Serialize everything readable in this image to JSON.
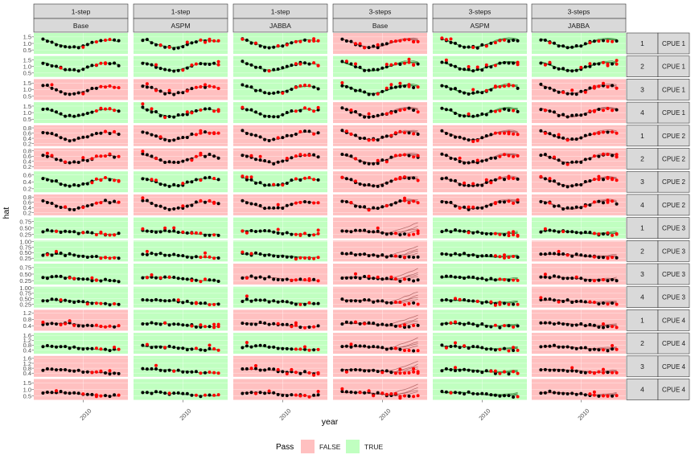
{
  "chart_data": {
    "type": "scatter",
    "xlabel": "year",
    "ylabel": "hat",
    "x_tick_labels": [
      "2010"
    ],
    "x_tick_values": [
      2010
    ],
    "xlim": [
      2000,
      2019
    ],
    "grid": true,
    "legend": {
      "title": "Pass",
      "placement": "bottom",
      "entries": [
        {
          "label": "FALSE",
          "color": "#ffc0c0"
        },
        {
          "label": "TRUE",
          "color": "#c0ffc0"
        }
      ]
    },
    "columns": [
      {
        "step": "1-step",
        "model": "Base"
      },
      {
        "step": "1-step",
        "model": "ASPM"
      },
      {
        "step": "1-step",
        "model": "JABBA"
      },
      {
        "step": "3-steps",
        "model": "Base"
      },
      {
        "step": "3-steps",
        "model": "ASPM"
      },
      {
        "step": "3-steps",
        "model": "JABBA"
      }
    ],
    "rows": [
      {
        "replicate": "1",
        "index": "CPUE 1",
        "ylim": [
          0.2,
          1.8
        ],
        "yticks": [
          "1.5",
          "1.0",
          "0.5"
        ],
        "ytick_values": [
          1.5,
          1.0,
          0.5
        ]
      },
      {
        "replicate": "2",
        "index": "CPUE 1",
        "ylim": [
          0.2,
          1.8
        ],
        "yticks": [
          "1.5",
          "1.0",
          "0.5"
        ],
        "ytick_values": [
          1.5,
          1.0,
          0.5
        ]
      },
      {
        "replicate": "3",
        "index": "CPUE 1",
        "ylim": [
          0.2,
          1.8
        ],
        "yticks": [
          "1.5",
          "1.0",
          "0.5"
        ],
        "ytick_values": [
          1.5,
          1.0,
          0.5
        ]
      },
      {
        "replicate": "4",
        "index": "CPUE 1",
        "ylim": [
          0.2,
          1.8
        ],
        "yticks": [
          "1.5",
          "1.0",
          "0.5"
        ],
        "ytick_values": [
          1.5,
          1.0,
          0.5
        ]
      },
      {
        "replicate": "1",
        "index": "CPUE 2",
        "ylim": [
          0.1,
          0.9
        ],
        "yticks": [
          "0.8",
          "0.6",
          "0.4",
          "0.2"
        ],
        "ytick_values": [
          0.8,
          0.6,
          0.4,
          0.2
        ]
      },
      {
        "replicate": "2",
        "index": "CPUE 2",
        "ylim": [
          0.1,
          0.9
        ],
        "yticks": [
          "0.8",
          "0.6",
          "0.4",
          "0.2"
        ],
        "ytick_values": [
          0.8,
          0.6,
          0.4,
          0.2
        ]
      },
      {
        "replicate": "3",
        "index": "CPUE 2",
        "ylim": [
          0.1,
          0.7
        ],
        "yticks": [
          "0.6",
          "0.4",
          "0.2"
        ],
        "ytick_values": [
          0.6,
          0.4,
          0.2
        ]
      },
      {
        "replicate": "4",
        "index": "CPUE 2",
        "ylim": [
          0.1,
          0.9
        ],
        "yticks": [
          "0.8",
          "0.6",
          "0.4",
          "0.2"
        ],
        "ytick_values": [
          0.8,
          0.6,
          0.4,
          0.2
        ]
      },
      {
        "replicate": "1",
        "index": "CPUE 3",
        "ylim": [
          0.1,
          0.9
        ],
        "yticks": [
          "0.75",
          "0.50",
          "0.25"
        ],
        "ytick_values": [
          0.75,
          0.5,
          0.25
        ]
      },
      {
        "replicate": "2",
        "index": "CPUE 3",
        "ylim": [
          0.1,
          1.05
        ],
        "yticks": [
          "1.00",
          "0.75",
          "0.50",
          "0.25"
        ],
        "ytick_values": [
          1.0,
          0.75,
          0.5,
          0.25
        ]
      },
      {
        "replicate": "3",
        "index": "CPUE 3",
        "ylim": [
          0.1,
          0.9
        ],
        "yticks": [
          "0.75",
          "0.50",
          "0.25"
        ],
        "ytick_values": [
          0.75,
          0.5,
          0.25
        ]
      },
      {
        "replicate": "4",
        "index": "CPUE 3",
        "ylim": [
          0.1,
          1.05
        ],
        "yticks": [
          "1.00",
          "0.75",
          "0.50",
          "0.25"
        ],
        "ytick_values": [
          1.0,
          0.75,
          0.5,
          0.25
        ]
      },
      {
        "replicate": "1",
        "index": "CPUE 4",
        "ylim": [
          0.1,
          1.4
        ],
        "yticks": [
          "1.2",
          "0.8",
          "0.4"
        ],
        "ytick_values": [
          1.2,
          0.8,
          0.4
        ]
      },
      {
        "replicate": "2",
        "index": "CPUE 4",
        "ylim": [
          0.1,
          1.8
        ],
        "yticks": [
          "1.6",
          "1.2",
          "0.8",
          "0.4"
        ],
        "ytick_values": [
          1.6,
          1.2,
          0.8,
          0.4
        ]
      },
      {
        "replicate": "3",
        "index": "CPUE 4",
        "ylim": [
          0.1,
          1.8
        ],
        "yticks": [
          "1.6",
          "1.2",
          "0.8",
          "0.4"
        ],
        "ytick_values": [
          1.6,
          1.2,
          0.8,
          0.4
        ]
      },
      {
        "replicate": "4",
        "index": "CPUE 4",
        "ylim": [
          0.2,
          1.8
        ],
        "yticks": [
          "1.5",
          "1.0",
          "0.5"
        ],
        "ytick_values": [
          1.5,
          1.0,
          0.5
        ]
      }
    ],
    "pass": [
      [
        true,
        true,
        true,
        false,
        true,
        true
      ],
      [
        true,
        true,
        true,
        true,
        true,
        true
      ],
      [
        false,
        false,
        true,
        true,
        true,
        false
      ],
      [
        true,
        true,
        true,
        false,
        true,
        false
      ],
      [
        false,
        false,
        false,
        false,
        false,
        false
      ],
      [
        false,
        false,
        false,
        false,
        false,
        false
      ],
      [
        true,
        true,
        true,
        false,
        false,
        false
      ],
      [
        false,
        false,
        false,
        false,
        false,
        false
      ],
      [
        true,
        true,
        true,
        false,
        true,
        true
      ],
      [
        true,
        true,
        true,
        false,
        true,
        false
      ],
      [
        true,
        true,
        false,
        false,
        true,
        false
      ],
      [
        true,
        true,
        true,
        false,
        true,
        false
      ],
      [
        false,
        true,
        false,
        false,
        true,
        false
      ],
      [
        true,
        true,
        true,
        false,
        true,
        false
      ],
      [
        false,
        true,
        false,
        false,
        true,
        false
      ],
      [
        false,
        true,
        false,
        false,
        true,
        false
      ]
    ]
  }
}
